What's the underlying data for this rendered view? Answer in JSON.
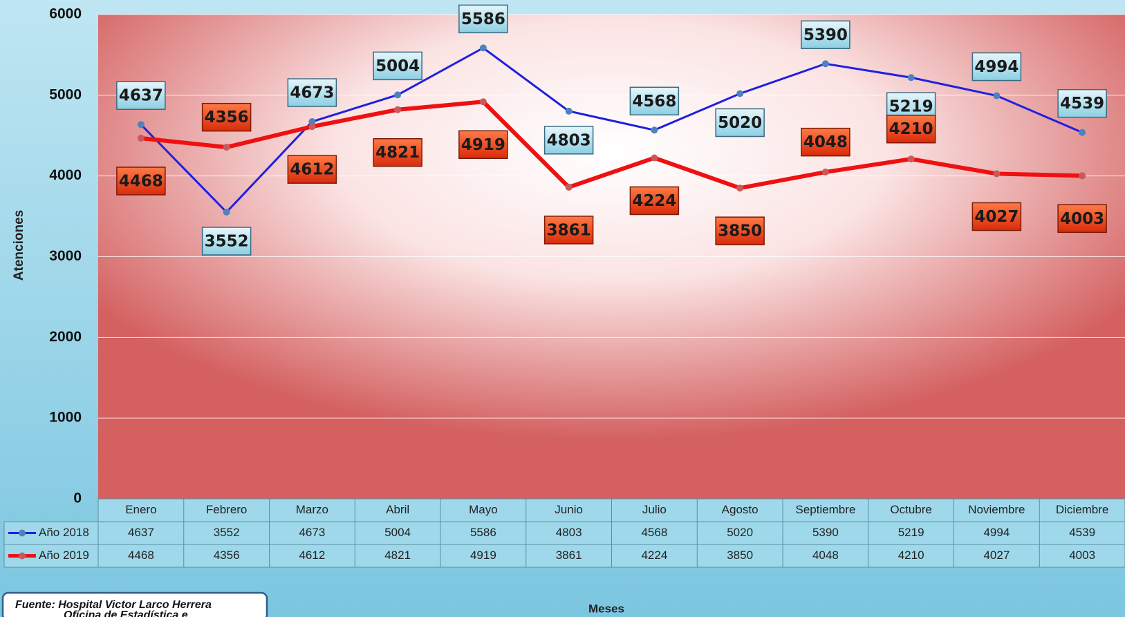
{
  "chart_data": {
    "type": "line",
    "categories": [
      "Enero",
      "Febrero",
      "Marzo",
      "Abril",
      "Mayo",
      "Junio",
      "Julio",
      "Agosto",
      "Septiembre",
      "Octubre",
      "Noviembre",
      "Diciembre"
    ],
    "series": [
      {
        "name": "Año 2018",
        "color": "#1f1fe0",
        "values": [
          4637,
          3552,
          4673,
          5004,
          5586,
          4803,
          4568,
          5020,
          5390,
          5219,
          4994,
          4539
        ]
      },
      {
        "name": "Año 2019",
        "color": "#ee1111",
        "values": [
          4468,
          4356,
          4612,
          4821,
          4919,
          3861,
          4224,
          3850,
          4048,
          4210,
          4027,
          4003
        ]
      }
    ],
    "ylim": [
      0,
      6000
    ],
    "yticks": [
      0,
      1000,
      2000,
      3000,
      4000,
      5000,
      6000
    ],
    "grid": true,
    "y_label": "Atenciones",
    "x_label": "Meses",
    "source": [
      "Fuente:  Hospital Victor Larco Herrera",
      "Oficina de Estadística e"
    ]
  }
}
